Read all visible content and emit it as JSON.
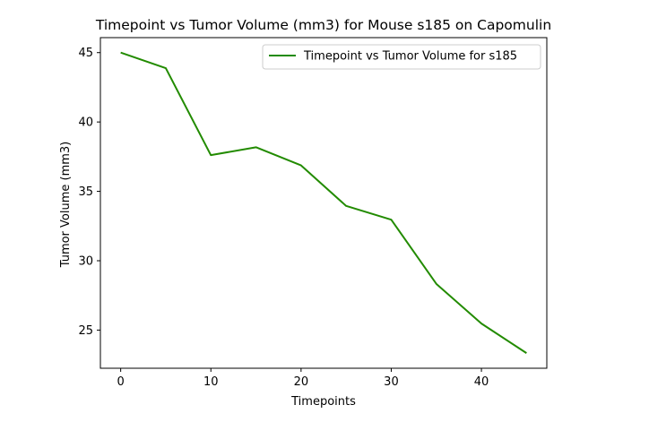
{
  "chart_data": {
    "type": "line",
    "title": "Timepoint vs Tumor Volume (mm3) for Mouse s185 on Capomulin",
    "xlabel": "Timepoints",
    "ylabel": "Tumor Volume (mm3)",
    "x": [
      0,
      5,
      10,
      15,
      20,
      25,
      30,
      35,
      40,
      45
    ],
    "series": [
      {
        "name": "Timepoint vs Tumor Volume for s185",
        "color": "#228b00",
        "values": [
          45.0,
          43.88,
          37.61,
          38.18,
          36.87,
          33.95,
          32.96,
          28.33,
          25.47,
          23.34
        ]
      }
    ],
    "xlim": [
      -2.25,
      47.25
    ],
    "ylim": [
      22.25,
      46.08
    ],
    "xticks": [
      0,
      10,
      20,
      30,
      40
    ],
    "yticks": [
      25,
      30,
      35,
      40,
      45
    ],
    "xtick_labels": [
      "0",
      "10",
      "20",
      "30",
      "40"
    ],
    "ytick_labels": [
      "25",
      "30",
      "35",
      "40",
      "45"
    ],
    "grid": false,
    "legend_position": "upper-right"
  }
}
